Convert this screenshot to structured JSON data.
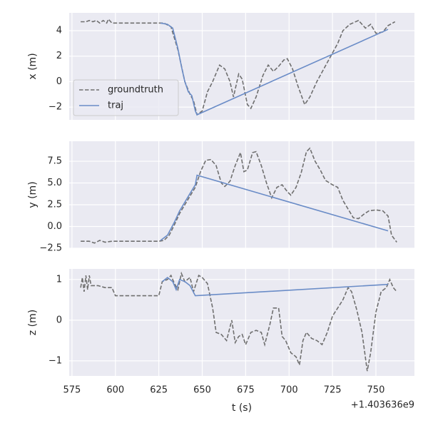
{
  "chart_data": [
    {
      "type": "line",
      "ylabel": "x (m)",
      "xlim": [
        573.4,
        772.2
      ],
      "xticks": [
        575,
        600,
        625,
        650,
        675,
        700,
        725,
        750
      ],
      "ylim": [
        -3.0,
        5.4
      ],
      "yticks": [
        {
          "value": -2,
          "label": "−2"
        },
        0,
        2,
        4
      ],
      "grid": true,
      "legend": "lower left",
      "series": [
        {
          "name": "groundtruth",
          "color": "#6f6f6f",
          "linestyle": "dashed",
          "x": [
            580,
            583,
            585,
            587,
            589,
            591,
            593,
            595,
            596,
            598,
            600,
            610,
            625,
            628,
            632,
            636,
            640,
            643,
            645,
            647,
            650,
            653,
            656,
            660,
            663,
            666,
            668,
            671,
            673,
            676,
            678,
            681,
            685,
            688,
            691,
            694,
            697,
            699,
            702,
            705,
            709,
            712,
            716,
            720,
            724,
            728,
            731,
            735,
            740,
            744,
            747,
            750,
            754,
            757,
            761
          ],
          "values": [
            4.7,
            4.7,
            4.8,
            4.7,
            4.8,
            4.6,
            4.8,
            4.6,
            4.9,
            4.6,
            4.6,
            4.6,
            4.6,
            4.6,
            4.3,
            2.5,
            0.0,
            -1.0,
            -1.5,
            -2.6,
            -2.3,
            -0.8,
            0.0,
            1.3,
            1.0,
            0.0,
            -1.2,
            0.6,
            0.2,
            -1.8,
            -2.1,
            -1.2,
            0.5,
            1.3,
            0.8,
            1.2,
            1.7,
            1.8,
            1.0,
            -0.3,
            -1.8,
            -1.2,
            0.0,
            1.0,
            2.0,
            3.0,
            4.0,
            4.5,
            4.8,
            4.2,
            4.5,
            3.8,
            3.9,
            4.4,
            4.7
          ]
        },
        {
          "name": "traj",
          "color": "#6a8cc7",
          "linestyle": "solid",
          "x": [
            626,
            630,
            633,
            636,
            638,
            640,
            642,
            644,
            646,
            647,
            757
          ],
          "values": [
            4.6,
            4.5,
            4.2,
            2.6,
            1.2,
            0.0,
            -0.8,
            -1.1,
            -2.3,
            -2.6,
            4.1
          ]
        }
      ]
    },
    {
      "type": "line",
      "ylabel": "y (m)",
      "xlim": [
        573.4,
        772.2
      ],
      "xticks": [
        575,
        600,
        625,
        650,
        675,
        700,
        725,
        750
      ],
      "ylim": [
        -2.5,
        9.8
      ],
      "yticks": [
        {
          "value": -2.5,
          "label": "−2.5"
        },
        {
          "value": 0,
          "label": "0.0"
        },
        2.5,
        {
          "value": 5,
          "label": "5.0"
        },
        7.5
      ],
      "grid": true,
      "series": [
        {
          "name": "groundtruth",
          "color": "#6f6f6f",
          "linestyle": "dashed",
          "x": [
            580,
            585,
            588,
            591,
            594,
            598,
            610,
            625,
            628,
            631,
            634,
            637,
            640,
            643,
            646,
            649,
            652,
            655,
            658,
            661,
            663,
            666,
            669,
            672,
            674,
            676,
            679,
            681,
            684,
            687,
            690,
            693,
            696,
            699,
            701,
            704,
            707,
            710,
            712,
            715,
            718,
            721,
            725,
            728,
            731,
            734,
            737,
            740,
            743,
            746,
            750,
            754,
            757,
            759,
            762
          ],
          "values": [
            -1.7,
            -1.7,
            -1.9,
            -1.6,
            -1.8,
            -1.7,
            -1.7,
            -1.7,
            -1.6,
            -1.0,
            0.2,
            1.5,
            2.5,
            3.5,
            4.5,
            6.3,
            7.6,
            7.7,
            7.0,
            5.0,
            4.6,
            5.2,
            7.0,
            8.5,
            6.3,
            6.5,
            8.5,
            8.6,
            7.0,
            5.0,
            3.3,
            4.5,
            4.8,
            4.0,
            3.6,
            4.5,
            6.2,
            8.6,
            9.0,
            7.5,
            6.5,
            5.3,
            4.8,
            4.5,
            3.0,
            2.0,
            1.0,
            0.9,
            1.4,
            1.8,
            1.9,
            1.8,
            1.2,
            -1.0,
            -1.8
          ]
        },
        {
          "name": "traj",
          "color": "#6a8cc7",
          "linestyle": "solid",
          "x": [
            626,
            630,
            634,
            637,
            640,
            643,
            646,
            647,
            757
          ],
          "values": [
            -1.6,
            -1.0,
            0.5,
            1.8,
            2.8,
            3.8,
            4.8,
            5.9,
            -0.5
          ]
        }
      ]
    },
    {
      "type": "line",
      "ylabel": "z (m)",
      "xlabel": "t (s)",
      "x_offset_label": "+1.403636e9",
      "xlim": [
        573.4,
        772.2
      ],
      "xticks": [
        575,
        600,
        625,
        650,
        675,
        700,
        725,
        750
      ],
      "ylim": [
        -1.37,
        1.26
      ],
      "yticks": [
        {
          "value": -1,
          "label": "−1"
        },
        0,
        1
      ],
      "grid": true,
      "series": [
        {
          "name": "groundtruth",
          "color": "#6f6f6f",
          "linestyle": "dashed",
          "x": [
            580,
            581,
            582,
            583,
            584,
            585,
            586,
            590,
            594,
            598,
            600,
            610,
            625,
            627,
            630,
            632,
            634,
            636,
            638,
            640,
            643,
            645,
            648,
            650,
            653,
            656,
            658,
            661,
            664,
            667,
            669,
            671,
            673,
            675,
            678,
            681,
            684,
            686,
            689,
            691,
            694,
            696,
            698,
            701,
            704,
            706,
            708,
            710,
            713,
            716,
            719,
            722,
            725,
            728,
            731,
            734,
            736,
            739,
            742,
            745,
            747,
            750,
            753,
            756,
            758,
            760,
            762
          ],
          "values": [
            0.8,
            1.05,
            0.7,
            1.1,
            0.75,
            1.1,
            0.85,
            0.85,
            0.8,
            0.8,
            0.6,
            0.6,
            0.6,
            0.95,
            1.0,
            1.1,
            0.9,
            0.75,
            1.15,
            0.95,
            1.05,
            0.7,
            1.1,
            1.05,
            0.9,
            0.3,
            -0.3,
            -0.35,
            -0.5,
            0.0,
            -0.55,
            -0.4,
            -0.35,
            -0.6,
            -0.3,
            -0.25,
            -0.3,
            -0.6,
            -0.1,
            0.3,
            0.3,
            -0.4,
            -0.5,
            -0.8,
            -0.9,
            -1.1,
            -0.5,
            -0.3,
            -0.45,
            -0.5,
            -0.6,
            -0.3,
            0.1,
            0.3,
            0.5,
            0.8,
            0.7,
            0.25,
            -0.3,
            -1.25,
            -0.8,
            0.2,
            0.7,
            0.8,
            1.0,
            0.8,
            0.7
          ]
        },
        {
          "name": "traj",
          "color": "#6a8cc7",
          "linestyle": "solid",
          "x": [
            627,
            630,
            633,
            635,
            637,
            640,
            643,
            646,
            757
          ],
          "values": [
            0.95,
            1.05,
            0.95,
            0.75,
            1.0,
            0.95,
            0.85,
            0.6,
            0.88
          ]
        }
      ]
    }
  ]
}
